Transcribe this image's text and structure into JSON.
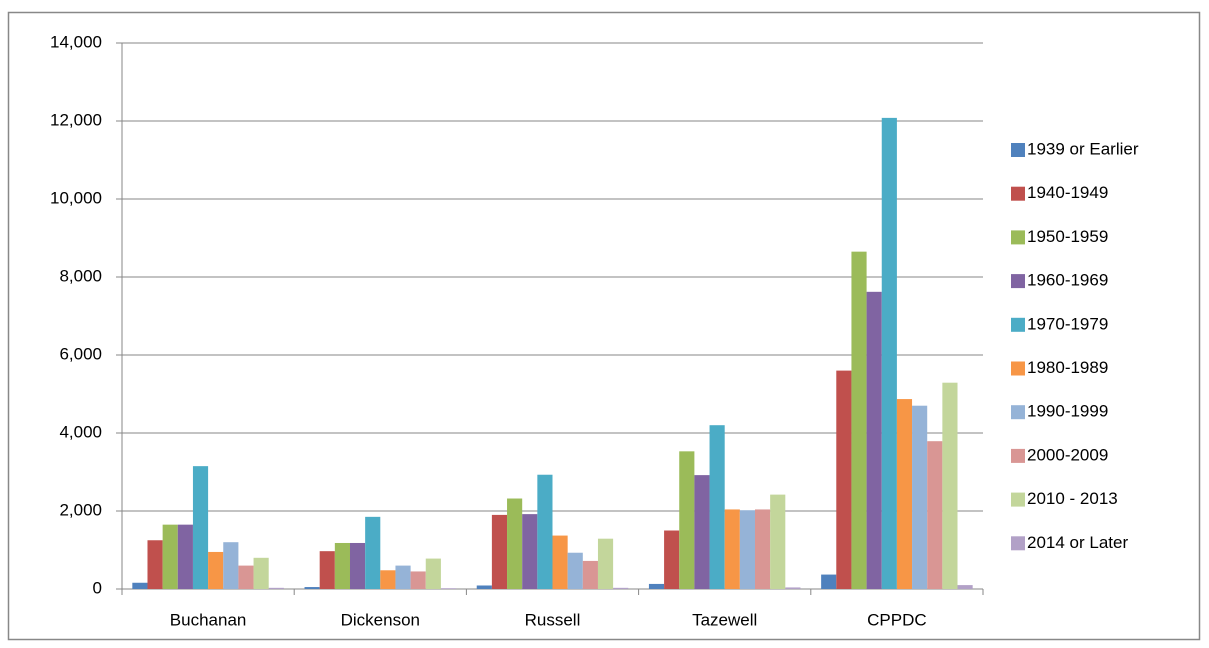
{
  "chart_data": {
    "type": "bar",
    "categories": [
      "Buchanan",
      "Dickenson",
      "Russell",
      "Tazewell",
      "CPPDC"
    ],
    "series": [
      {
        "name": "1939 or Earlier",
        "color": "#4f81bd",
        "values": [
          160,
          50,
          90,
          130,
          370
        ]
      },
      {
        "name": "1940-1949",
        "color": "#c0504d",
        "values": [
          1250,
          970,
          1900,
          1500,
          5600
        ]
      },
      {
        "name": "1950-1959",
        "color": "#9bbb59",
        "values": [
          1650,
          1180,
          2320,
          3530,
          8650
        ]
      },
      {
        "name": "1960-1969",
        "color": "#8064a2",
        "values": [
          1650,
          1180,
          1920,
          2920,
          7620
        ]
      },
      {
        "name": "1970-1979",
        "color": "#4bacc6",
        "values": [
          3150,
          1850,
          2930,
          4200,
          12080
        ]
      },
      {
        "name": "1980-1989",
        "color": "#f79646",
        "values": [
          950,
          480,
          1370,
          2040,
          4870
        ]
      },
      {
        "name": "1990-1999",
        "color": "#95b3d7",
        "values": [
          1200,
          600,
          930,
          2020,
          4700
        ]
      },
      {
        "name": "2000-2009",
        "color": "#d99694",
        "values": [
          600,
          450,
          720,
          2040,
          3790
        ]
      },
      {
        "name": "2010 - 2013",
        "color": "#c3d69b",
        "values": [
          800,
          780,
          1290,
          2420,
          5290
        ]
      },
      {
        "name": "2014 or Later",
        "color": "#b2a1c7",
        "values": [
          30,
          20,
          30,
          40,
          100
        ]
      }
    ],
    "ylim": [
      0,
      14000
    ],
    "yticks": [
      0,
      {
        "value": 2000,
        "label": "2,000"
      },
      {
        "value": 4000,
        "label": "4,000"
      },
      {
        "value": 6000,
        "label": "6,000"
      },
      {
        "value": 8000,
        "label": "8,000"
      },
      {
        "value": 10000,
        "label": "10,000"
      },
      {
        "value": 12000,
        "label": "12,000"
      },
      {
        "value": 14000,
        "label": "14,000"
      }
    ],
    "grid": true,
    "legend": "right"
  }
}
